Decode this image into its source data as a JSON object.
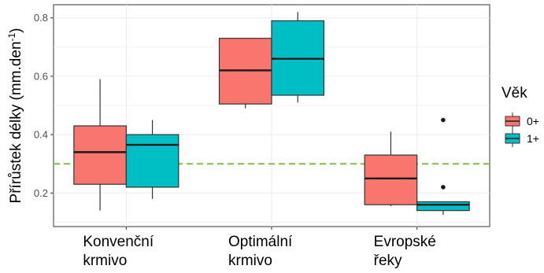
{
  "chart_data": {
    "type": "box",
    "ylabel": "Přírůstek délky (mm.den",
    "ylabel_superscript": "-1",
    "ylabel_close": ")",
    "yticks": [
      "0.2",
      "0.4",
      "0.6",
      "0.8"
    ],
    "ylim": [
      0.085,
      0.845
    ],
    "categories": [
      [
        "Konvenční",
        "krmivo"
      ],
      [
        "Optimální",
        "krmivo"
      ],
      [
        "Evropské",
        "řeky"
      ]
    ],
    "reference_line": {
      "y": 0.3,
      "color": "#7bc142",
      "style": "dashed"
    },
    "legend": {
      "title": "Věk",
      "placement": "right"
    },
    "series": [
      {
        "name": "0+",
        "color": "#f8766d",
        "boxes": [
          {
            "whisker_low": 0.14,
            "q1": 0.23,
            "median": 0.34,
            "q3": 0.43,
            "whisker_high": 0.59,
            "outliers": []
          },
          {
            "whisker_low": 0.49,
            "q1": 0.505,
            "median": 0.62,
            "q3": 0.73,
            "whisker_high": 0.73,
            "outliers": []
          },
          {
            "whisker_low": 0.155,
            "q1": 0.16,
            "median": 0.25,
            "q3": 0.33,
            "whisker_high": 0.41,
            "outliers": []
          }
        ]
      },
      {
        "name": "1+",
        "color": "#00bfc4",
        "boxes": [
          {
            "whisker_low": 0.18,
            "q1": 0.22,
            "median": 0.365,
            "q3": 0.4,
            "whisker_high": 0.45,
            "outliers": []
          },
          {
            "whisker_low": 0.51,
            "q1": 0.535,
            "median": 0.66,
            "q3": 0.79,
            "whisker_high": 0.82,
            "outliers": []
          },
          {
            "whisker_low": 0.125,
            "q1": 0.14,
            "median": 0.16,
            "q3": 0.17,
            "whisker_high": 0.17,
            "outliers": [
              0.22,
              0.45
            ]
          }
        ]
      }
    ]
  }
}
